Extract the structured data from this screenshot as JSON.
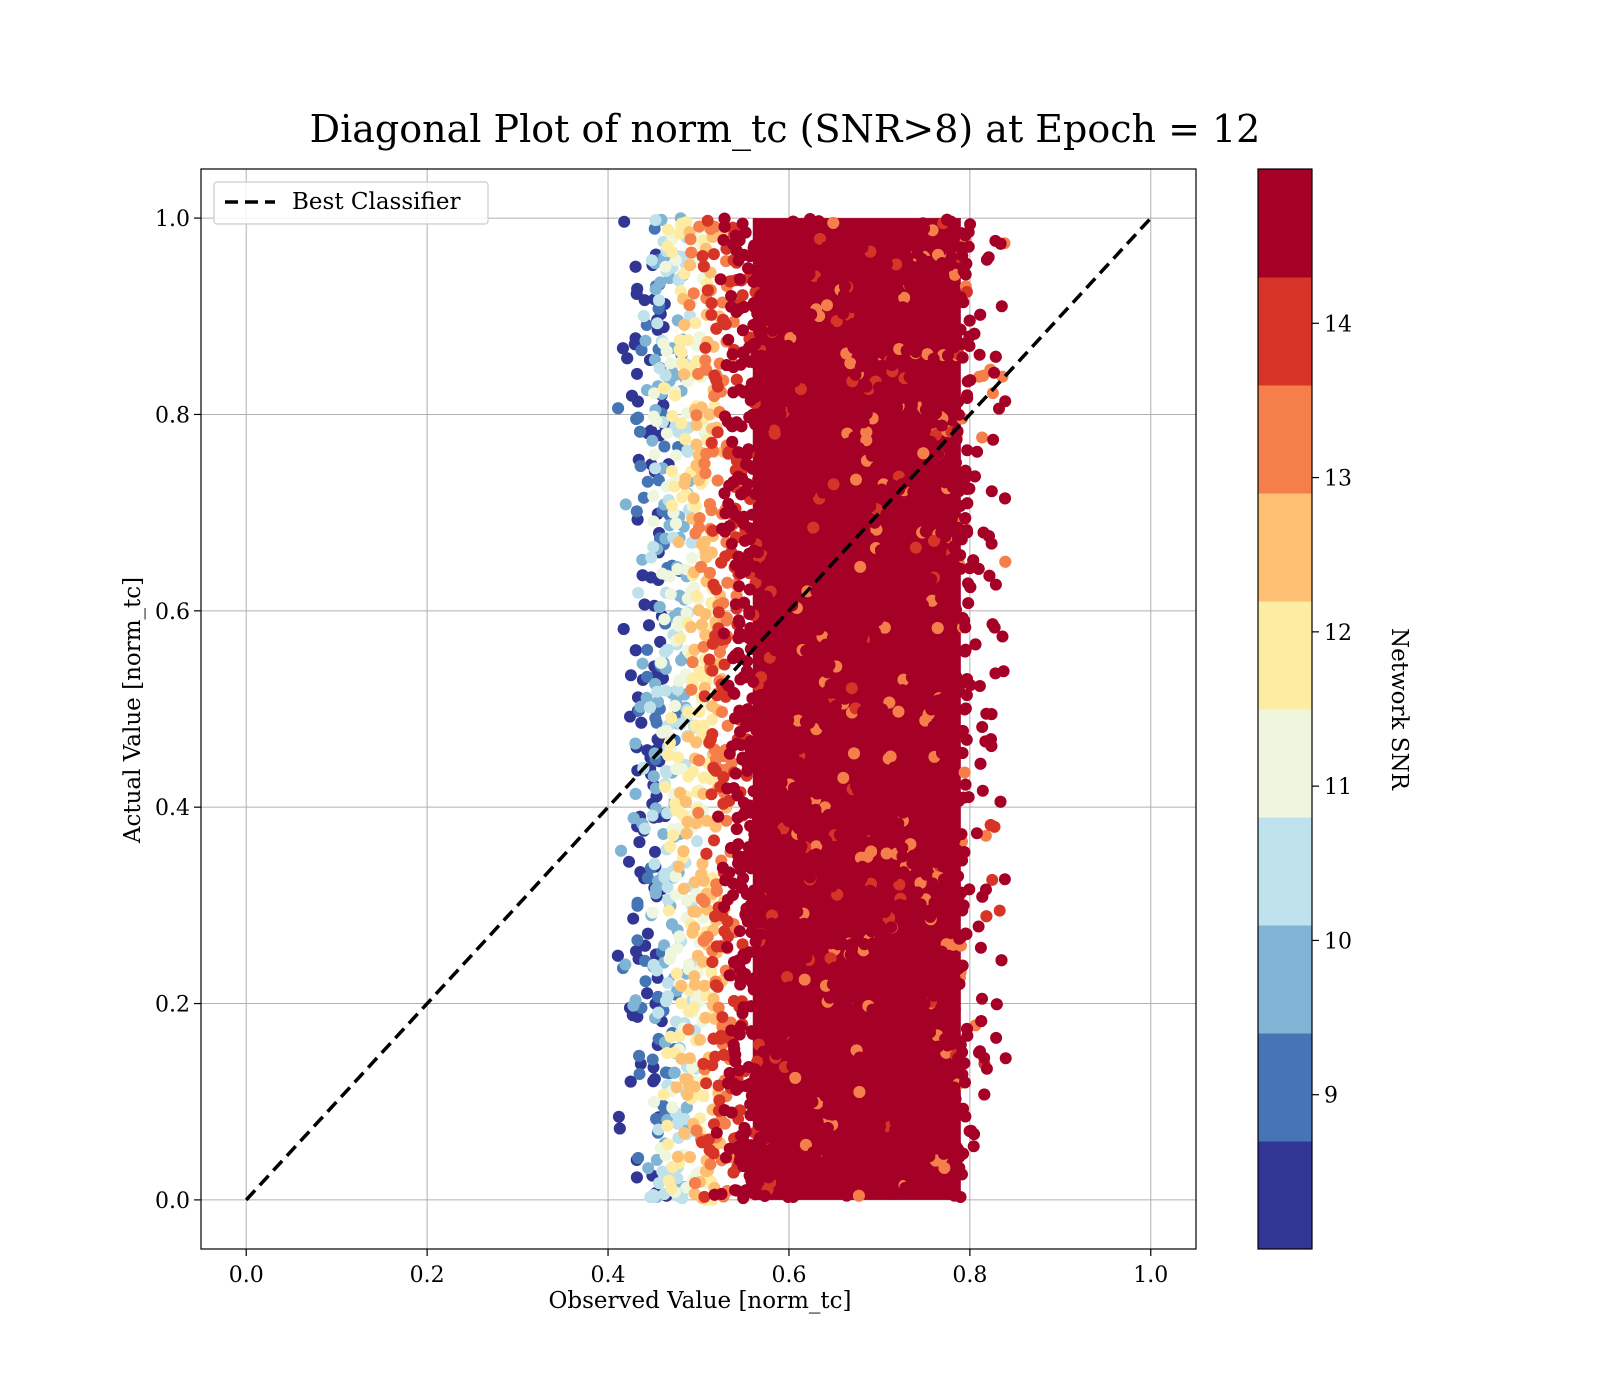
{
  "chart_data": {
    "type": "scatter",
    "title": "Diagonal Plot of norm_tc (SNR>8) at Epoch = 12",
    "xlabel": "Observed Value [norm_tc]",
    "ylabel": "Actual Value [norm_tc]",
    "xlim": [
      -0.05,
      1.05
    ],
    "ylim": [
      -0.05,
      1.05
    ],
    "x_ticks": [
      "0.0",
      "0.2",
      "0.4",
      "0.6",
      "0.8",
      "1.0"
    ],
    "y_ticks": [
      "0.0",
      "0.2",
      "0.4",
      "0.6",
      "0.8",
      "1.0"
    ],
    "grid": true,
    "legend": {
      "placement": "upper-left",
      "entries": [
        "Best Classifier"
      ]
    },
    "reference_line": {
      "label": "Best Classifier",
      "style": "dashed",
      "color": "#000000",
      "x": [
        0.0,
        1.0
      ],
      "y": [
        0.0,
        1.0
      ]
    },
    "scatter_extent": {
      "x_min": 0.41,
      "x_max": 0.845,
      "y_min": 0.0,
      "y_max": 1.0
    },
    "colorbar": {
      "label": "Network SNR",
      "range": [
        8,
        15
      ],
      "tick_labels": [
        "9",
        "10",
        "11",
        "12",
        "13",
        "14"
      ],
      "tick_values": [
        9,
        10,
        11,
        12,
        13,
        14
      ],
      "bins": [
        {
          "from": 8.0,
          "to": 8.7,
          "color": "#313695"
        },
        {
          "from": 8.7,
          "to": 9.4,
          "color": "#4575b4"
        },
        {
          "from": 9.4,
          "to": 10.1,
          "color": "#80b4d4"
        },
        {
          "from": 10.1,
          "to": 10.8,
          "color": "#bfe1eb"
        },
        {
          "from": 10.8,
          "to": 11.5,
          "color": "#eef6de"
        },
        {
          "from": 11.5,
          "to": 12.2,
          "color": "#feeca2"
        },
        {
          "from": 12.2,
          "to": 12.9,
          "color": "#fdbf71"
        },
        {
          "from": 12.9,
          "to": 13.6,
          "color": "#f57f4a"
        },
        {
          "from": 13.6,
          "to": 14.3,
          "color": "#d73428"
        },
        {
          "from": 14.3,
          "to": 15.0,
          "color": "#a50026"
        }
      ]
    }
  }
}
